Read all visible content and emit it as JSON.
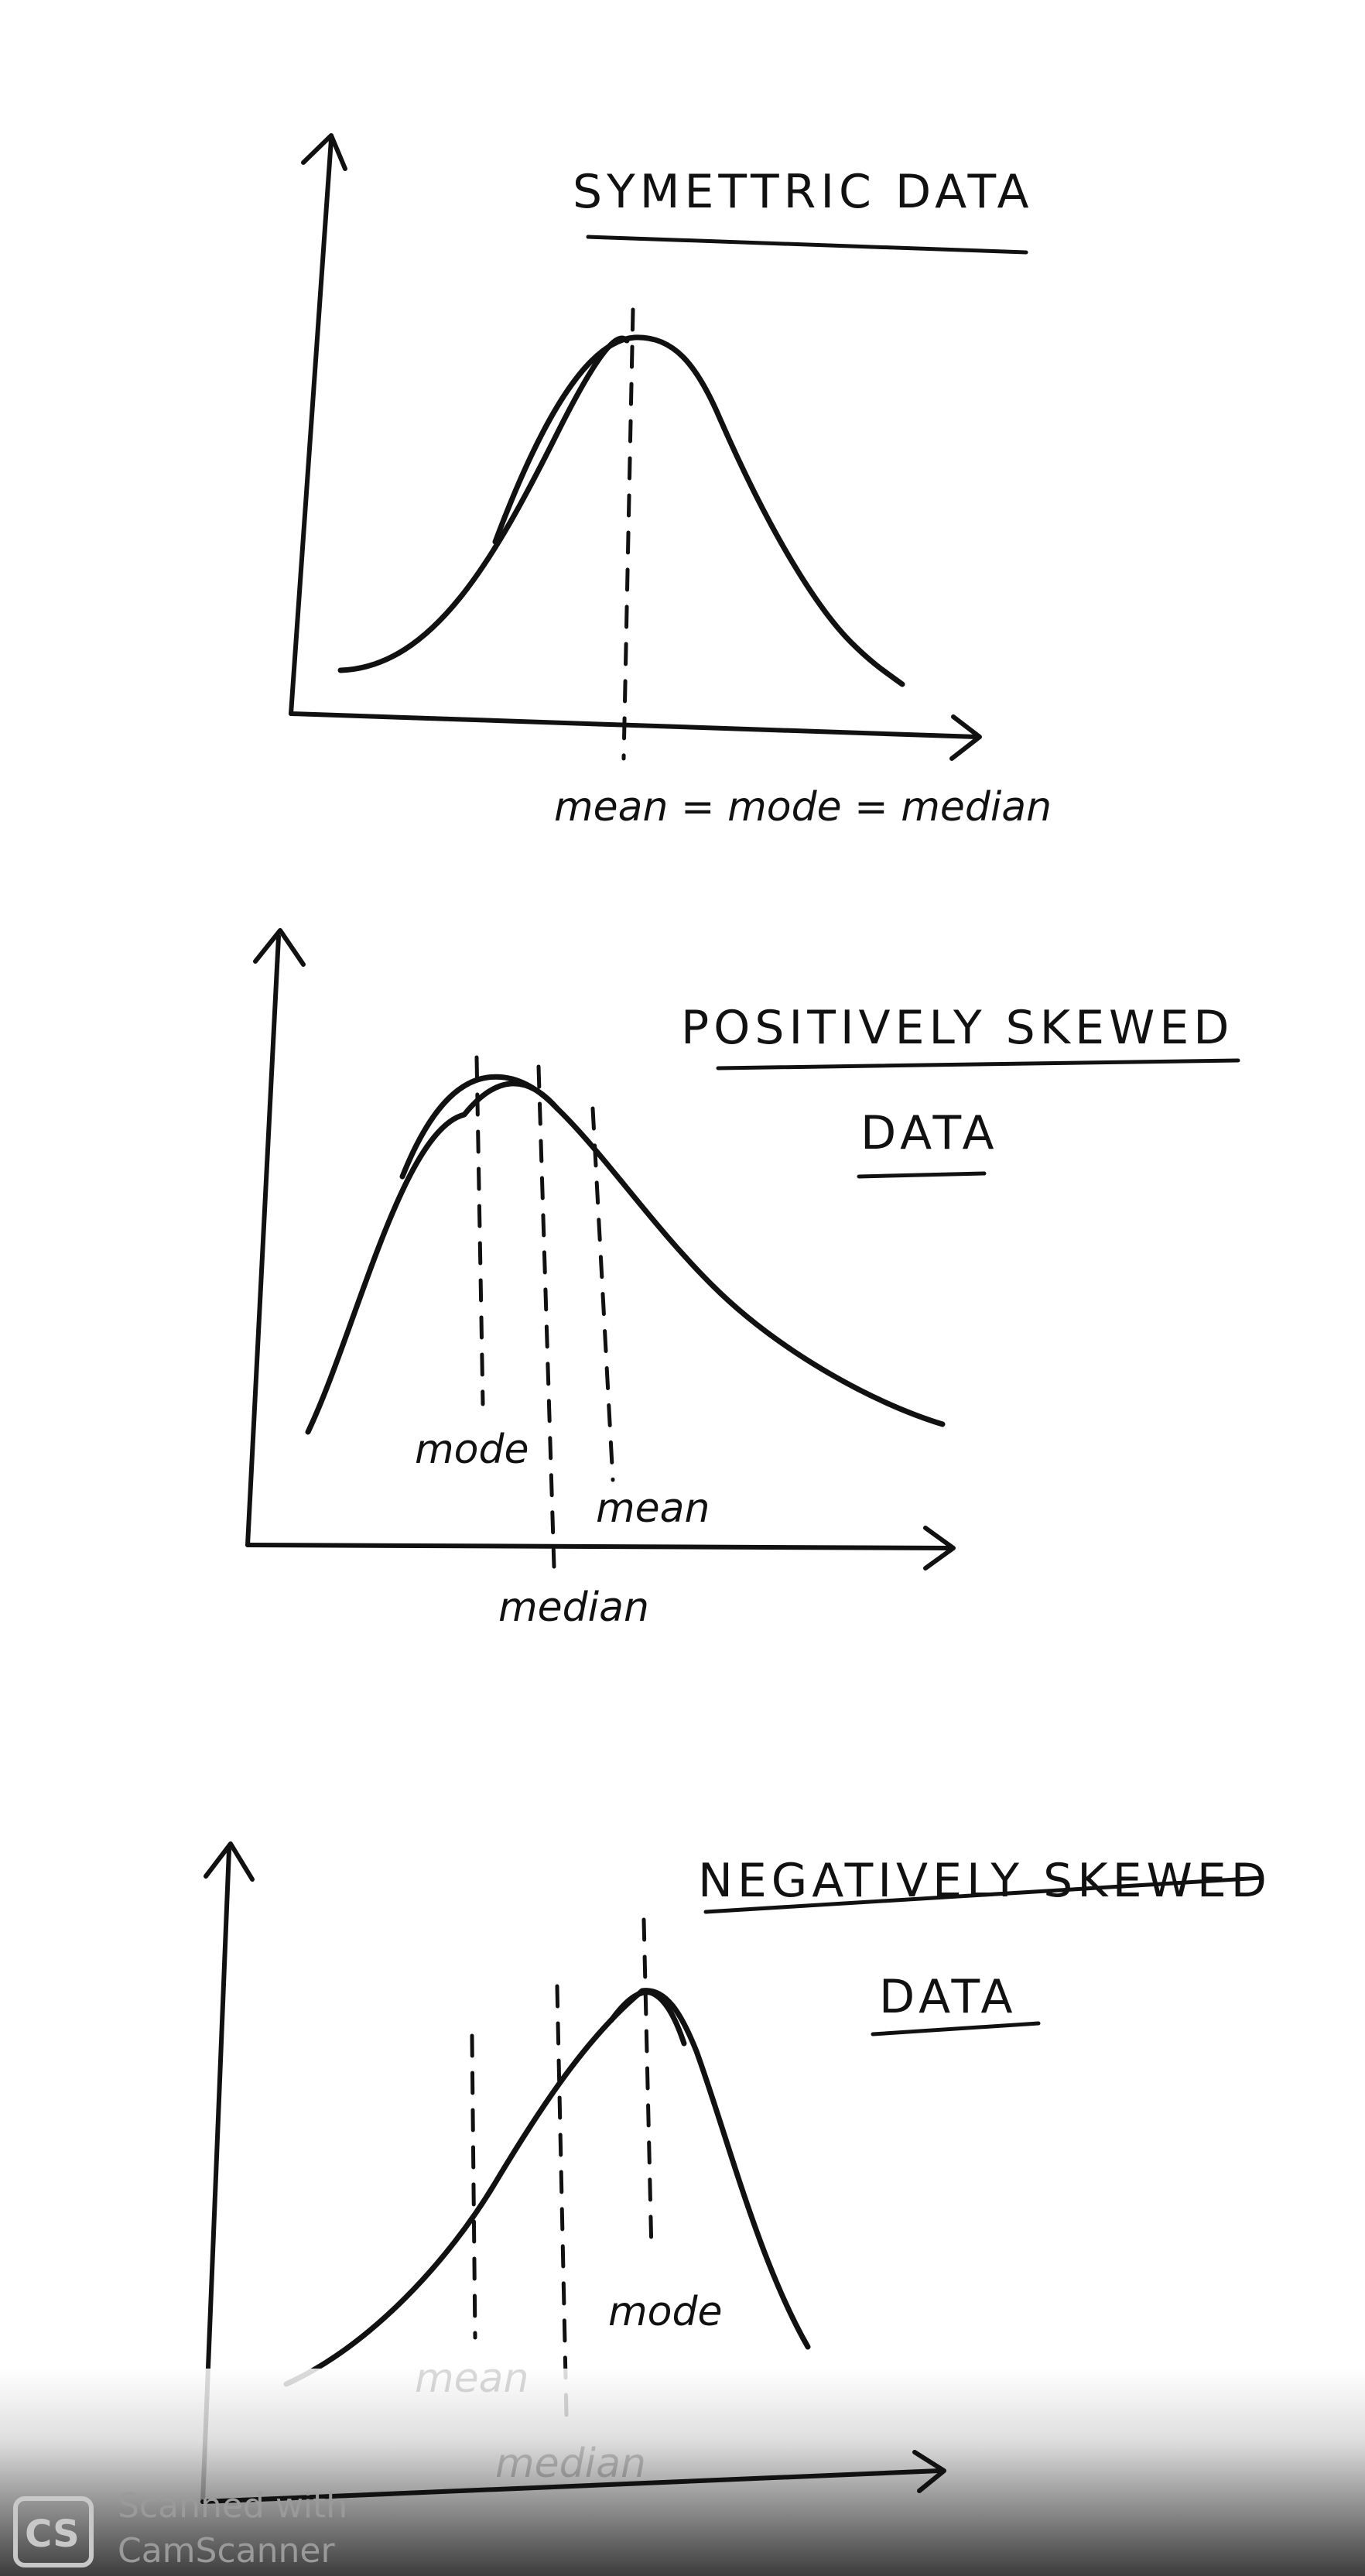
{
  "panels": {
    "symmetric": {
      "title_line1": "SYMETTRIC DATA",
      "label_center": "mean = mode = median"
    },
    "positive": {
      "title_line1": "POSITIVELY SKEWED",
      "title_line2": "DATA",
      "label_mode": "mode",
      "label_median": "median",
      "label_mean": "mean"
    },
    "negative": {
      "title_line1": "NEGATIVELY SKEWED",
      "title_line2": "DATA",
      "label_mean": "mean",
      "label_median": "median",
      "label_mode": "mode"
    }
  },
  "watermark": {
    "logo_text": "CS",
    "line1": "Scanned with",
    "line2": "CamScanner"
  },
  "colors": {
    "ink": "#111111",
    "paper": "#ffffff",
    "watermark": "#9a9a9a"
  }
}
